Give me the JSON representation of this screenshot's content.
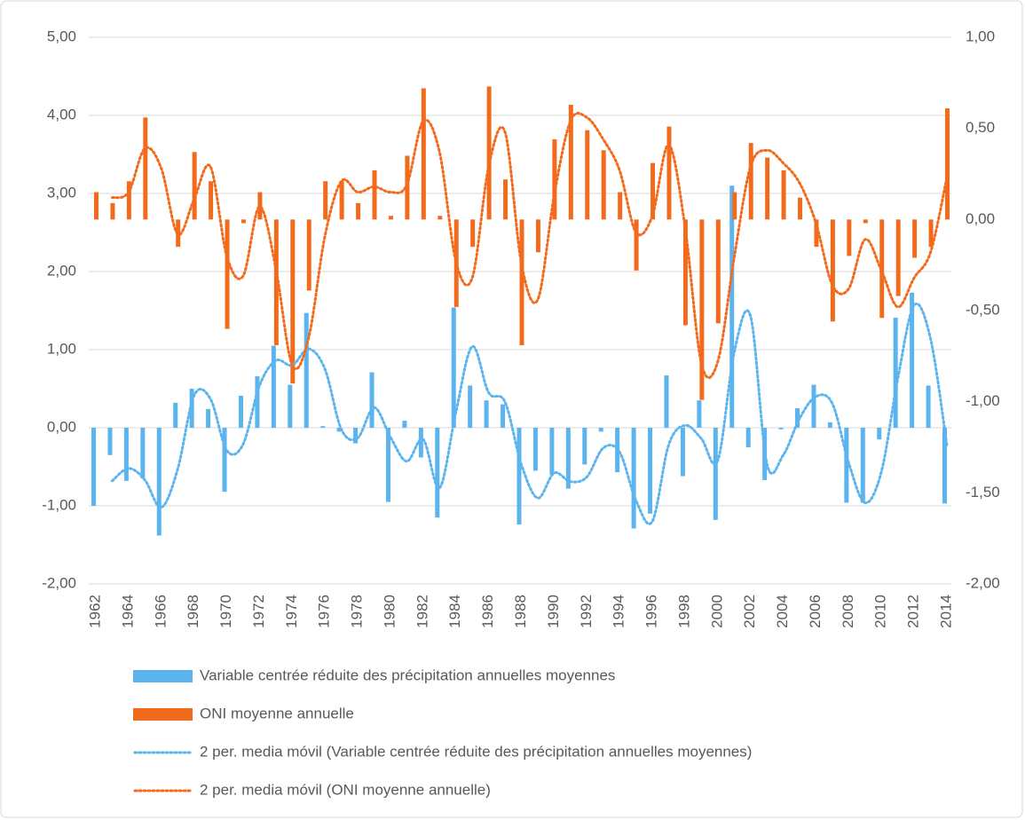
{
  "chart_data": {
    "type": "combo",
    "categories": [
      "1962",
      null,
      "1964",
      null,
      "1966",
      null,
      "1968",
      null,
      "1970",
      null,
      "1972",
      null,
      "1974",
      null,
      "1976",
      null,
      "1978",
      null,
      "1980",
      null,
      "1982",
      null,
      "1984",
      null,
      "1986",
      null,
      "1988",
      null,
      "1990",
      null,
      "1992",
      null,
      "1994",
      null,
      "1996",
      null,
      "1998",
      null,
      "2000",
      null,
      "2002",
      null,
      "2004",
      null,
      "2006",
      null,
      "2008",
      null,
      "2010",
      null,
      "2012",
      null,
      "2014"
    ],
    "ylim": [
      -2,
      5
    ],
    "yticks": [
      {
        "value": 5,
        "label": "5,00"
      },
      {
        "value": 4,
        "label": "4,00"
      },
      {
        "value": 3,
        "label": "3,00"
      },
      {
        "value": 2,
        "label": "2,00"
      },
      {
        "value": 1,
        "label": "1,00"
      },
      {
        "value": 0,
        "label": "0,00"
      },
      {
        "value": -1,
        "label": "-1,00"
      },
      {
        "value": -2,
        "label": "-2,00"
      }
    ],
    "y2lim": [
      -2,
      1
    ],
    "y2ticks": [
      {
        "value": 1,
        "label": "1,00"
      },
      {
        "value": 0.5,
        "label": "0,50"
      },
      {
        "value": 0,
        "label": "0,00"
      },
      {
        "value": -0.5,
        "label": "-0,50"
      },
      {
        "value": -1,
        "label": "-1,00"
      },
      {
        "value": -1.5,
        "label": "-1,50"
      },
      {
        "value": -2,
        "label": "-2,00"
      }
    ],
    "grid": true,
    "legend": "bottom",
    "series": [
      {
        "name": "Variable centrée réduite des précipitation annuelles moyennes",
        "type": "bar",
        "color": "#5cb4ee",
        "values": [
          -1.0,
          -0.35,
          -0.68,
          -0.65,
          -1.38,
          0.32,
          0.5,
          0.24,
          -0.82,
          0.41,
          0.66,
          1.05,
          0.55,
          1.47,
          0.02,
          -0.05,
          -0.2,
          0.71,
          -0.95,
          0.09,
          -0.38,
          -1.15,
          1.54,
          0.54,
          0.35,
          0.3,
          -1.24,
          -0.55,
          -0.6,
          -0.78,
          -0.47,
          -0.05,
          -0.57,
          -1.29,
          -1.1,
          0.67,
          -0.62,
          0.35,
          -1.18,
          3.1,
          -0.25,
          -0.67,
          -0.02,
          0.25,
          0.55,
          0.07,
          -0.96,
          -0.96,
          -0.15,
          1.41,
          1.73,
          0.54,
          -0.97
        ]
      },
      {
        "name": "ONI moyenne annuelle",
        "type": "bar",
        "axis": "y2",
        "color": "#f26b1d",
        "values": [
          0.15,
          0.09,
          0.21,
          0.56,
          0.0,
          -0.15,
          0.37,
          0.21,
          -0.6,
          -0.02,
          0.15,
          -0.69,
          -0.9,
          -0.39,
          0.21,
          0.21,
          0.09,
          0.27,
          0.02,
          0.35,
          0.72,
          0.02,
          -0.48,
          -0.15,
          0.73,
          0.22,
          -0.69,
          -0.18,
          0.44,
          0.63,
          0.49,
          0.38,
          0.15,
          -0.28,
          0.31,
          0.51,
          -0.58,
          -0.99,
          -0.57,
          0.15,
          0.42,
          0.34,
          0.27,
          0.12,
          -0.15,
          -0.56,
          -0.2,
          -0.02,
          -0.54,
          -0.42,
          -0.21,
          -0.15,
          0.61
        ]
      },
      {
        "name": "2 per. media móvil (Variable centrée réduite des précipitation annuelles moyennes)",
        "type": "line",
        "color": "#5cb4ee",
        "values": [
          null,
          -0.68,
          -0.52,
          -0.67,
          -1.02,
          -0.53,
          0.41,
          0.37,
          -0.29,
          -0.21,
          0.54,
          0.86,
          0.8,
          1.01,
          0.75,
          -0.02,
          -0.13,
          0.26,
          -0.12,
          -0.43,
          -0.15,
          -0.77,
          0.2,
          1.04,
          0.45,
          0.33,
          -0.47,
          -0.9,
          -0.58,
          -0.69,
          -0.63,
          -0.26,
          -0.31,
          -0.93,
          -1.2,
          -0.22,
          0.03,
          -0.14,
          -0.42,
          0.96,
          1.43,
          -0.46,
          -0.35,
          0.12,
          0.4,
          0.31,
          -0.45,
          -0.96,
          -0.56,
          0.63,
          1.57,
          1.14,
          -0.22
        ]
      },
      {
        "name": "2 per. media móvil (ONI moyenne annuelle)",
        "type": "line",
        "axis": "y2",
        "color": "#f26b1d",
        "values": [
          null,
          0.12,
          0.15,
          0.39,
          0.28,
          -0.08,
          0.11,
          0.29,
          -0.2,
          -0.31,
          0.07,
          -0.27,
          -0.8,
          -0.65,
          -0.09,
          0.21,
          0.15,
          0.18,
          0.15,
          0.19,
          0.54,
          0.37,
          -0.23,
          -0.32,
          0.29,
          0.48,
          -0.24,
          -0.44,
          0.13,
          0.54,
          0.56,
          0.44,
          0.27,
          -0.07,
          0.02,
          0.41,
          -0.04,
          -0.79,
          -0.78,
          -0.21,
          0.29,
          0.38,
          0.31,
          0.2,
          -0.02,
          -0.36,
          -0.38,
          -0.11,
          -0.28,
          -0.48,
          -0.32,
          -0.18,
          0.23
        ]
      }
    ]
  }
}
